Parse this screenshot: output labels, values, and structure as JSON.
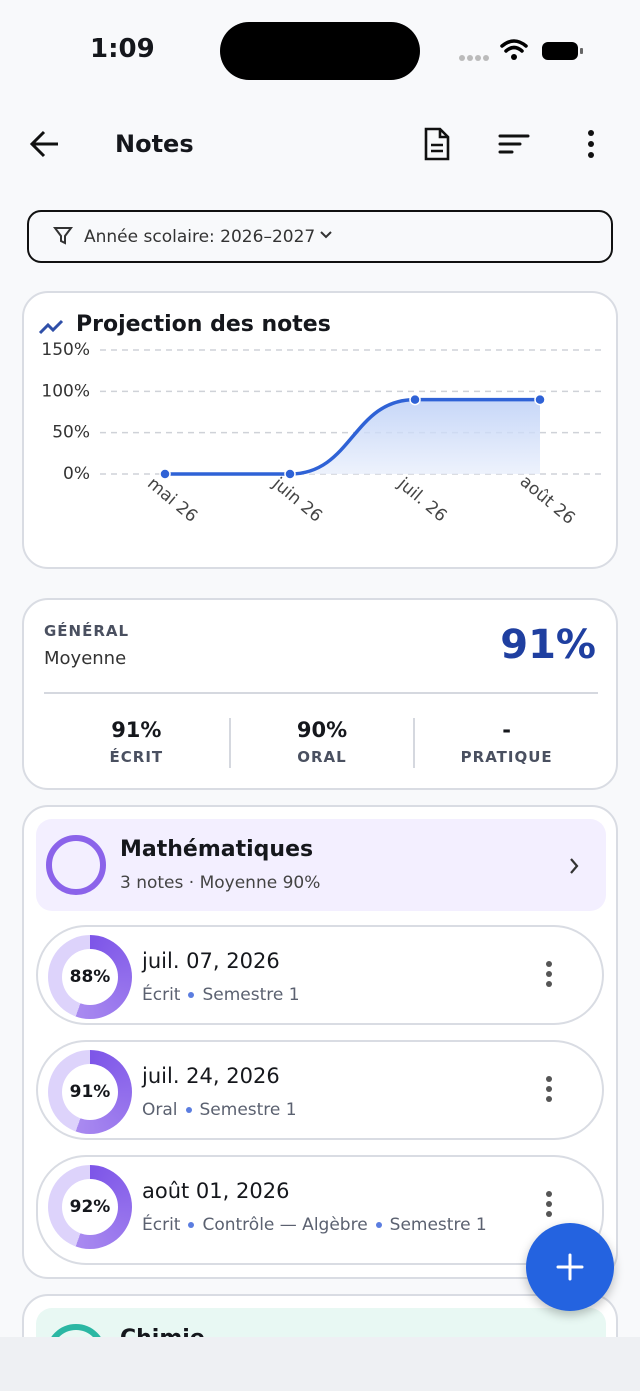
{
  "status": {
    "time": "1:09"
  },
  "appbar": {
    "title": "Notes"
  },
  "filter": "Année scolaire: 2026–2027",
  "chart_data": {
    "type": "line",
    "title": "Projection des notes",
    "categories": [
      "mai 26",
      "juin 26",
      "juil. 26",
      "août 26"
    ],
    "series": [
      {
        "name": "Projection",
        "color": "#2f62d6",
        "values": [
          0,
          0,
          90,
          90
        ]
      }
    ],
    "ylim": [
      0,
      150
    ],
    "yticks": [
      {
        "value": 0,
        "label": "0%"
      },
      {
        "value": 50,
        "label": "50%"
      },
      {
        "value": 100,
        "label": "100%"
      },
      {
        "value": 150,
        "label": "150%"
      }
    ],
    "grid": true
  },
  "summary": {
    "label": "GÉNÉRAL",
    "sub": "Moyenne",
    "average": "91%",
    "stats": [
      {
        "value": "91%",
        "label": "ÉCRIT"
      },
      {
        "value": "90%",
        "label": "ORAL"
      },
      {
        "value": "-",
        "label": "PRATIQUE"
      }
    ]
  },
  "subjects": [
    {
      "name": "Mathématiques",
      "sub": "3 notes · Moyenne 90%",
      "notes": [
        {
          "percent": "88%",
          "date": "juil. 07, 2026",
          "tags": [
            "Écrit",
            "Semestre 1"
          ]
        },
        {
          "percent": "91%",
          "date": "juil. 24, 2026",
          "tags": [
            "Oral",
            "Semestre 1"
          ]
        },
        {
          "percent": "92%",
          "date": "août 01, 2026",
          "tags": [
            "Écrit",
            "Contrôle — Algèbre",
            "Semestre 1"
          ]
        }
      ]
    },
    {
      "name": "Chimie"
    }
  ]
}
